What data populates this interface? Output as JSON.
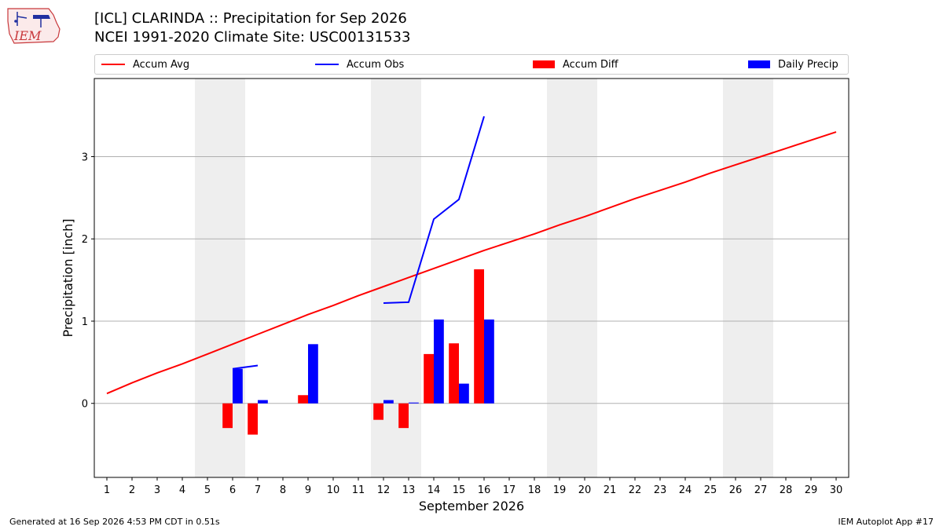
{
  "header": {
    "title": "[ICL] CLARINDA :: Precipitation for Sep 2026",
    "subtitle": "NCEI 1991-2020 Climate Site: USC00131533"
  },
  "logo": {
    "text": "IEM"
  },
  "legend": {
    "items": [
      {
        "label": "Accum Avg",
        "kind": "line",
        "color": "#ff0000"
      },
      {
        "label": "Accum Obs",
        "kind": "line",
        "color": "#0000ff"
      },
      {
        "label": "Accum Diff",
        "kind": "patch",
        "color": "#ff0000"
      },
      {
        "label": "Daily Precip",
        "kind": "patch",
        "color": "#0000ff"
      }
    ]
  },
  "footer": {
    "left": "Generated at 16 Sep 2026 4:53 PM CDT in 0.51s",
    "right": "IEM Autoplot App #17"
  },
  "chart_data": {
    "type": "bar",
    "xlabel": "September 2026",
    "ylabel": "Precipitation [inch]",
    "xlim": [
      0.5,
      30.5
    ],
    "ylim": [
      -0.9,
      3.95
    ],
    "yticks": [
      0,
      1,
      2,
      3
    ],
    "xticks": [
      1,
      2,
      3,
      4,
      5,
      6,
      7,
      8,
      9,
      10,
      11,
      12,
      13,
      14,
      15,
      16,
      17,
      18,
      19,
      20,
      21,
      22,
      23,
      24,
      25,
      26,
      27,
      28,
      29,
      30
    ],
    "weekend_days": [
      [
        5,
        6
      ],
      [
        12,
        13
      ],
      [
        19,
        20
      ],
      [
        26,
        27
      ]
    ],
    "grid": "y",
    "legend_position": "top",
    "series": [
      {
        "name": "Accum Avg",
        "type": "line",
        "color": "#ff0000",
        "x": [
          1,
          2,
          3,
          4,
          5,
          6,
          7,
          8,
          9,
          10,
          11,
          12,
          13,
          14,
          15,
          16,
          17,
          18,
          19,
          20,
          21,
          22,
          23,
          24,
          25,
          26,
          27,
          28,
          29,
          30
        ],
        "values": [
          0.12,
          0.25,
          0.37,
          0.48,
          0.6,
          0.72,
          0.84,
          0.96,
          1.08,
          1.19,
          1.31,
          1.42,
          1.53,
          1.64,
          1.75,
          1.86,
          1.96,
          2.06,
          2.17,
          2.27,
          2.38,
          2.49,
          2.59,
          2.69,
          2.8,
          2.9,
          3.0,
          3.1,
          3.2,
          3.3
        ]
      },
      {
        "name": "Accum Obs",
        "type": "line",
        "color": "#0000ff",
        "segments": [
          {
            "x": [
              6,
              7
            ],
            "values": [
              0.42,
              0.46
            ]
          },
          {
            "x": [
              12,
              13,
              14,
              15,
              16
            ],
            "values": [
              1.22,
              1.23,
              2.24,
              2.48,
              3.49
            ]
          }
        ]
      },
      {
        "name": "Accum Diff",
        "type": "bar",
        "color": "#ff0000",
        "x": [
          6,
          7,
          9,
          12,
          13,
          14,
          15,
          16
        ],
        "values": [
          -0.3,
          -0.38,
          0.1,
          -0.2,
          -0.3,
          0.6,
          0.73,
          1.63
        ]
      },
      {
        "name": "Daily Precip",
        "type": "bar",
        "color": "#0000ff",
        "x": [
          6,
          7,
          9,
          12,
          13,
          14,
          15,
          16
        ],
        "values": [
          0.42,
          0.04,
          0.72,
          0.04,
          0.01,
          1.02,
          0.24,
          1.02
        ]
      }
    ]
  }
}
